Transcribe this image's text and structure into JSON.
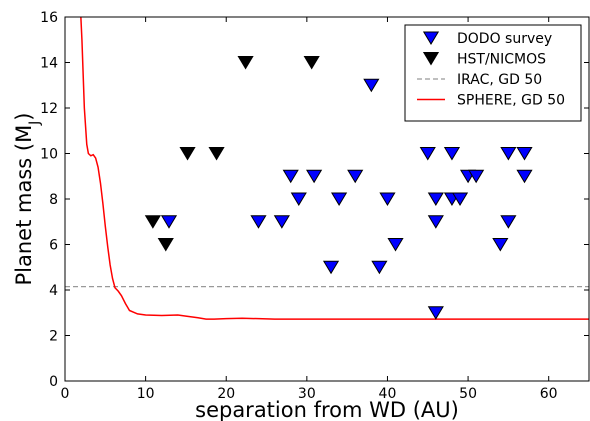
{
  "chart_data": {
    "type": "scatter",
    "xlabel": "separation from WD (AU)",
    "ylabel_main": "Planet mass (M",
    "ylabel_sub": "J",
    "ylabel_close": ")",
    "xlim": [
      0,
      65
    ],
    "ylim": [
      0,
      16
    ],
    "x_ticks": [
      "0",
      "10",
      "20",
      "30",
      "40",
      "50",
      "60"
    ],
    "y_ticks": [
      "0",
      "2",
      "4",
      "6",
      "8",
      "10",
      "12",
      "14",
      "16"
    ],
    "grid": false,
    "legend_position": "top-right",
    "series": [
      {
        "name": "DODO survey",
        "marker": "triangle-down",
        "color": "#0000ff",
        "points": [
          [
            12.9,
            7
          ],
          [
            24,
            7
          ],
          [
            26.9,
            7
          ],
          [
            28,
            9
          ],
          [
            29,
            8
          ],
          [
            30.9,
            9
          ],
          [
            33,
            5
          ],
          [
            34,
            8
          ],
          [
            36,
            9
          ],
          [
            38,
            13
          ],
          [
            39,
            5
          ],
          [
            40,
            8
          ],
          [
            41,
            6
          ],
          [
            45,
            10
          ],
          [
            46,
            8
          ],
          [
            46,
            7
          ],
          [
            46,
            3
          ],
          [
            48,
            10
          ],
          [
            48,
            8
          ],
          [
            49,
            8
          ],
          [
            50,
            9
          ],
          [
            51,
            9
          ],
          [
            54,
            6
          ],
          [
            55,
            10
          ],
          [
            55,
            7
          ],
          [
            57,
            10
          ],
          [
            57,
            9
          ]
        ]
      },
      {
        "name": "HST/NICMOS",
        "marker": "triangle-down",
        "color": "#000000",
        "points": [
          [
            10.9,
            7
          ],
          [
            12.5,
            6
          ],
          [
            15.2,
            10
          ],
          [
            18.8,
            10
          ],
          [
            22.4,
            14
          ],
          [
            30.6,
            14
          ]
        ]
      },
      {
        "name": "IRAC, GD 50",
        "style": "dashed-line",
        "color": "#999999",
        "y": 4.15
      },
      {
        "name": "SPHERE, GD 50",
        "style": "line",
        "color": "#ff0000",
        "points": [
          [
            1.9,
            16.5
          ],
          [
            2.1,
            15
          ],
          [
            2.4,
            12
          ],
          [
            2.7,
            10.4
          ],
          [
            2.9,
            10
          ],
          [
            3.2,
            9.9
          ],
          [
            3.5,
            9.95
          ],
          [
            3.8,
            9.8
          ],
          [
            4.1,
            9.4
          ],
          [
            4.4,
            8.7
          ],
          [
            4.7,
            7.8
          ],
          [
            5.0,
            6.8
          ],
          [
            5.3,
            5.9
          ],
          [
            5.6,
            5.1
          ],
          [
            5.9,
            4.5
          ],
          [
            6.2,
            4.1
          ],
          [
            6.6,
            3.95
          ],
          [
            7.0,
            3.75
          ],
          [
            7.5,
            3.4
          ],
          [
            8.0,
            3.1
          ],
          [
            9.0,
            2.95
          ],
          [
            10.0,
            2.9
          ],
          [
            12.0,
            2.88
          ],
          [
            14.0,
            2.9
          ],
          [
            15.0,
            2.85
          ],
          [
            16.5,
            2.78
          ],
          [
            17.5,
            2.72
          ],
          [
            18.5,
            2.72
          ],
          [
            20.0,
            2.74
          ],
          [
            22.0,
            2.76
          ],
          [
            24.0,
            2.74
          ],
          [
            26.0,
            2.72
          ],
          [
            30.0,
            2.72
          ],
          [
            40.0,
            2.72
          ],
          [
            50.0,
            2.72
          ],
          [
            60.0,
            2.72
          ],
          [
            65.0,
            2.72
          ]
        ]
      }
    ]
  }
}
